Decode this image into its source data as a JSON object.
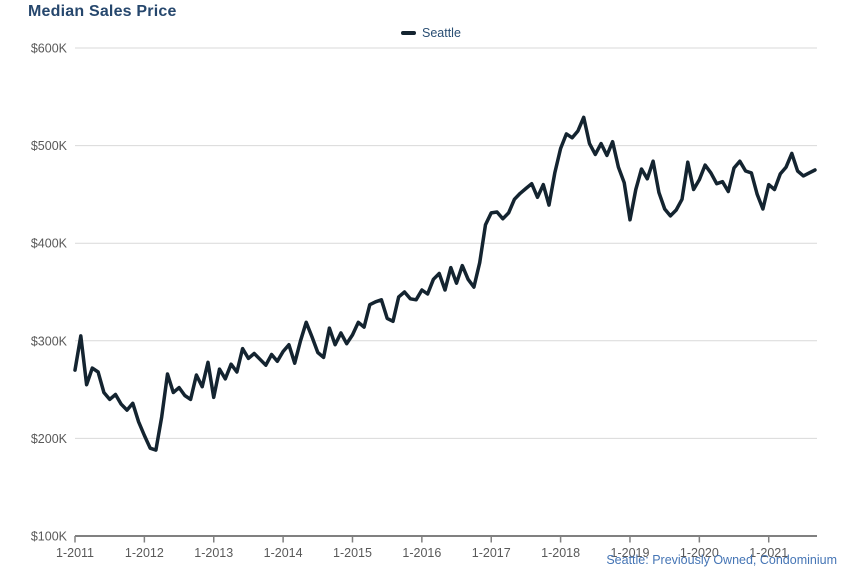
{
  "title": "Median Sales Price",
  "legend": {
    "label": "Seattle"
  },
  "footer": {
    "label": "Seattle: Previously Owned, Condominium"
  },
  "colors": {
    "line": "#142430",
    "title_text": "#26476d",
    "legend_text": "#2a4e73",
    "footer_text": "#4575b5",
    "axis_text": "#595959",
    "gridline": "#d9d9d9",
    "axis_line": "#808080",
    "background": "#ffffff"
  },
  "y_axis": {
    "tick_labels": [
      "$600K",
      "$500K",
      "$400K",
      "$300K",
      "$200K",
      "$100K"
    ],
    "tick_values": [
      600,
      500,
      400,
      300,
      200,
      100
    ]
  },
  "x_axis": {
    "tick_labels": [
      "1-2011",
      "1-2012",
      "1-2013",
      "1-2014",
      "1-2015",
      "1-2016",
      "1-2017",
      "1-2018",
      "1-2019",
      "1-2020",
      "1-2021"
    ]
  },
  "chart_data": {
    "type": "line",
    "title": "Median Sales Price",
    "xlabel": "",
    "ylabel": "",
    "ylim_k_usd": [
      100,
      600
    ],
    "grid": "horizontal",
    "legend_position": "top-center",
    "x_start": "1-2011",
    "x_end": "9-2021",
    "frequency": "monthly",
    "series": [
      {
        "name": "Seattle",
        "units": "USD thousands",
        "values_k_usd": [
          270,
          305,
          255,
          272,
          268,
          247,
          240,
          245,
          235,
          229,
          236,
          217,
          203,
          190,
          188,
          222,
          266,
          247,
          252,
          244,
          240,
          265,
          253,
          278,
          242,
          271,
          261,
          276,
          268,
          292,
          282,
          287,
          281,
          275,
          286,
          279,
          289,
          296,
          277,
          300,
          319,
          304,
          288,
          283,
          313,
          296,
          308,
          297,
          306,
          319,
          314,
          337,
          340,
          342,
          323,
          320,
          345,
          350,
          343,
          342,
          352,
          348,
          363,
          369,
          352,
          375,
          359,
          377,
          363,
          355,
          380,
          419,
          431,
          432,
          425,
          431,
          445,
          451,
          456,
          461,
          447,
          460,
          439,
          472,
          497,
          512,
          508,
          515,
          529,
          502,
          491,
          502,
          490,
          504,
          478,
          462,
          424,
          455,
          476,
          466,
          484,
          452,
          435,
          428,
          434,
          445,
          483,
          455,
          465,
          480,
          472,
          461,
          463,
          453,
          477,
          484,
          474,
          472,
          450,
          435,
          460,
          455,
          471,
          478,
          492,
          474,
          469,
          472,
          475
        ]
      }
    ]
  }
}
